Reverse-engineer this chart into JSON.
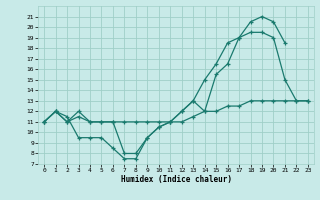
{
  "title": "",
  "xlabel": "Humidex (Indice chaleur)",
  "background_color": "#c8eae8",
  "grid_color": "#a0cfc8",
  "line_color": "#1a7a6e",
  "xlim": [
    -0.5,
    23.5
  ],
  "ylim": [
    7,
    22
  ],
  "yticks": [
    7,
    8,
    9,
    10,
    11,
    12,
    13,
    14,
    15,
    16,
    17,
    18,
    19,
    20,
    21
  ],
  "xticks": [
    0,
    1,
    2,
    3,
    4,
    5,
    6,
    7,
    8,
    9,
    10,
    11,
    12,
    13,
    14,
    15,
    16,
    17,
    18,
    19,
    20,
    21,
    22,
    23
  ],
  "line1_x": [
    0,
    1,
    2,
    3,
    4,
    5,
    6,
    7,
    8,
    9,
    10,
    11,
    12,
    13,
    14,
    15,
    16,
    17,
    18,
    19,
    20,
    21,
    22,
    23
  ],
  "line1_y": [
    11,
    12,
    11,
    12,
    11,
    11,
    11,
    8,
    8,
    9.5,
    10.5,
    11,
    12,
    13,
    12,
    15.5,
    16.5,
    19,
    20.5,
    21,
    20.5,
    18.5,
    null,
    null
  ],
  "line2_x": [
    0,
    1,
    2,
    3,
    4,
    5,
    6,
    7,
    8,
    9,
    10,
    11,
    12,
    13,
    14,
    15,
    16,
    17,
    18,
    19,
    20,
    21,
    22,
    23
  ],
  "line2_y": [
    11,
    12,
    11.5,
    9.5,
    9.5,
    9.5,
    8.5,
    7.5,
    7.5,
    9.5,
    10.5,
    11,
    12,
    13,
    15,
    16.5,
    18.5,
    19,
    19.5,
    19.5,
    19,
    15,
    13,
    13
  ],
  "line3_x": [
    0,
    1,
    2,
    3,
    4,
    5,
    6,
    7,
    8,
    9,
    10,
    11,
    12,
    13,
    14,
    15,
    16,
    17,
    18,
    19,
    20,
    21,
    22,
    23
  ],
  "line3_y": [
    11,
    12,
    11,
    11.5,
    11,
    11,
    11,
    11,
    11,
    11,
    11,
    11,
    11,
    11.5,
    12,
    12,
    12.5,
    12.5,
    13,
    13,
    13,
    13,
    13,
    13
  ]
}
